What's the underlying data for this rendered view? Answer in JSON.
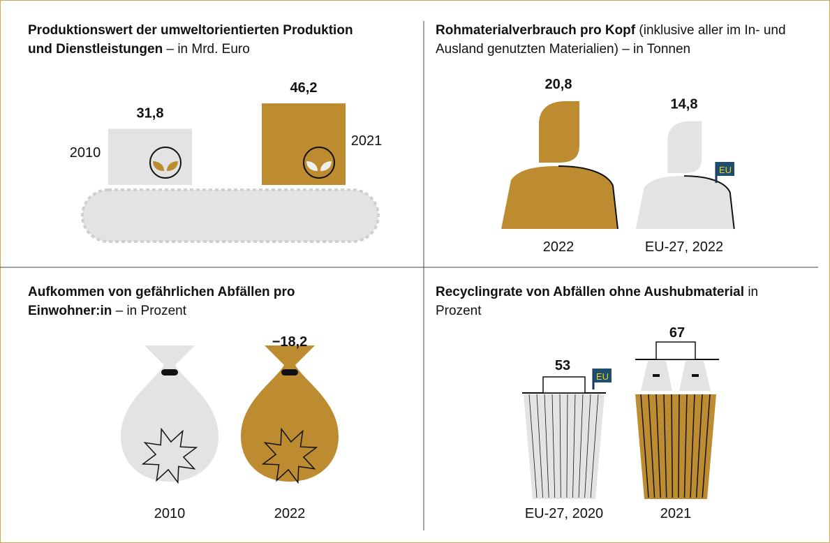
{
  "chart_data": [
    {
      "type": "pictogram",
      "title": "Produktionswert der umweltorientierten Produktion und Dienstleistungen",
      "subtitle": "– in Mrd. Euro",
      "categories": [
        "2010",
        "2021"
      ],
      "values": [
        31.8,
        46.2
      ],
      "value_labels": [
        "31,8",
        "46,2"
      ],
      "colors": [
        "#e3e3e3",
        "#bd8b30"
      ]
    },
    {
      "type": "pictogram",
      "title": "Rohmaterialverbrauch pro Kopf",
      "subtitle": "(inklusive aller im In- und Ausland genutzten Materialien) – in Tonnen",
      "categories": [
        "2022",
        "EU-27, 2022"
      ],
      "values": [
        20.8,
        14.8
      ],
      "value_labels": [
        "20,8",
        "14,8"
      ],
      "colors": [
        "#bd8b30",
        "#e3e3e3"
      ],
      "flag_label": "EU"
    },
    {
      "type": "pictogram",
      "title": "Aufkommen von gefährlichen Abfällen pro Einwohner:in",
      "subtitle": "– in Prozent",
      "categories": [
        "2010",
        "2022"
      ],
      "values": [
        null,
        -18.2
      ],
      "value_labels": [
        null,
        "−18,2"
      ],
      "colors": [
        "#e3e3e3",
        "#bd8b30"
      ]
    },
    {
      "type": "pictogram",
      "title": "Recyclingrate von Abfällen ohne Aushubmaterial",
      "subtitle": "in Prozent",
      "categories": [
        "EU-27, 2020",
        "2021"
      ],
      "values": [
        53,
        67
      ],
      "colors": [
        "#e3e3e3",
        "#bd8b30"
      ],
      "flag_label": "EU"
    }
  ]
}
